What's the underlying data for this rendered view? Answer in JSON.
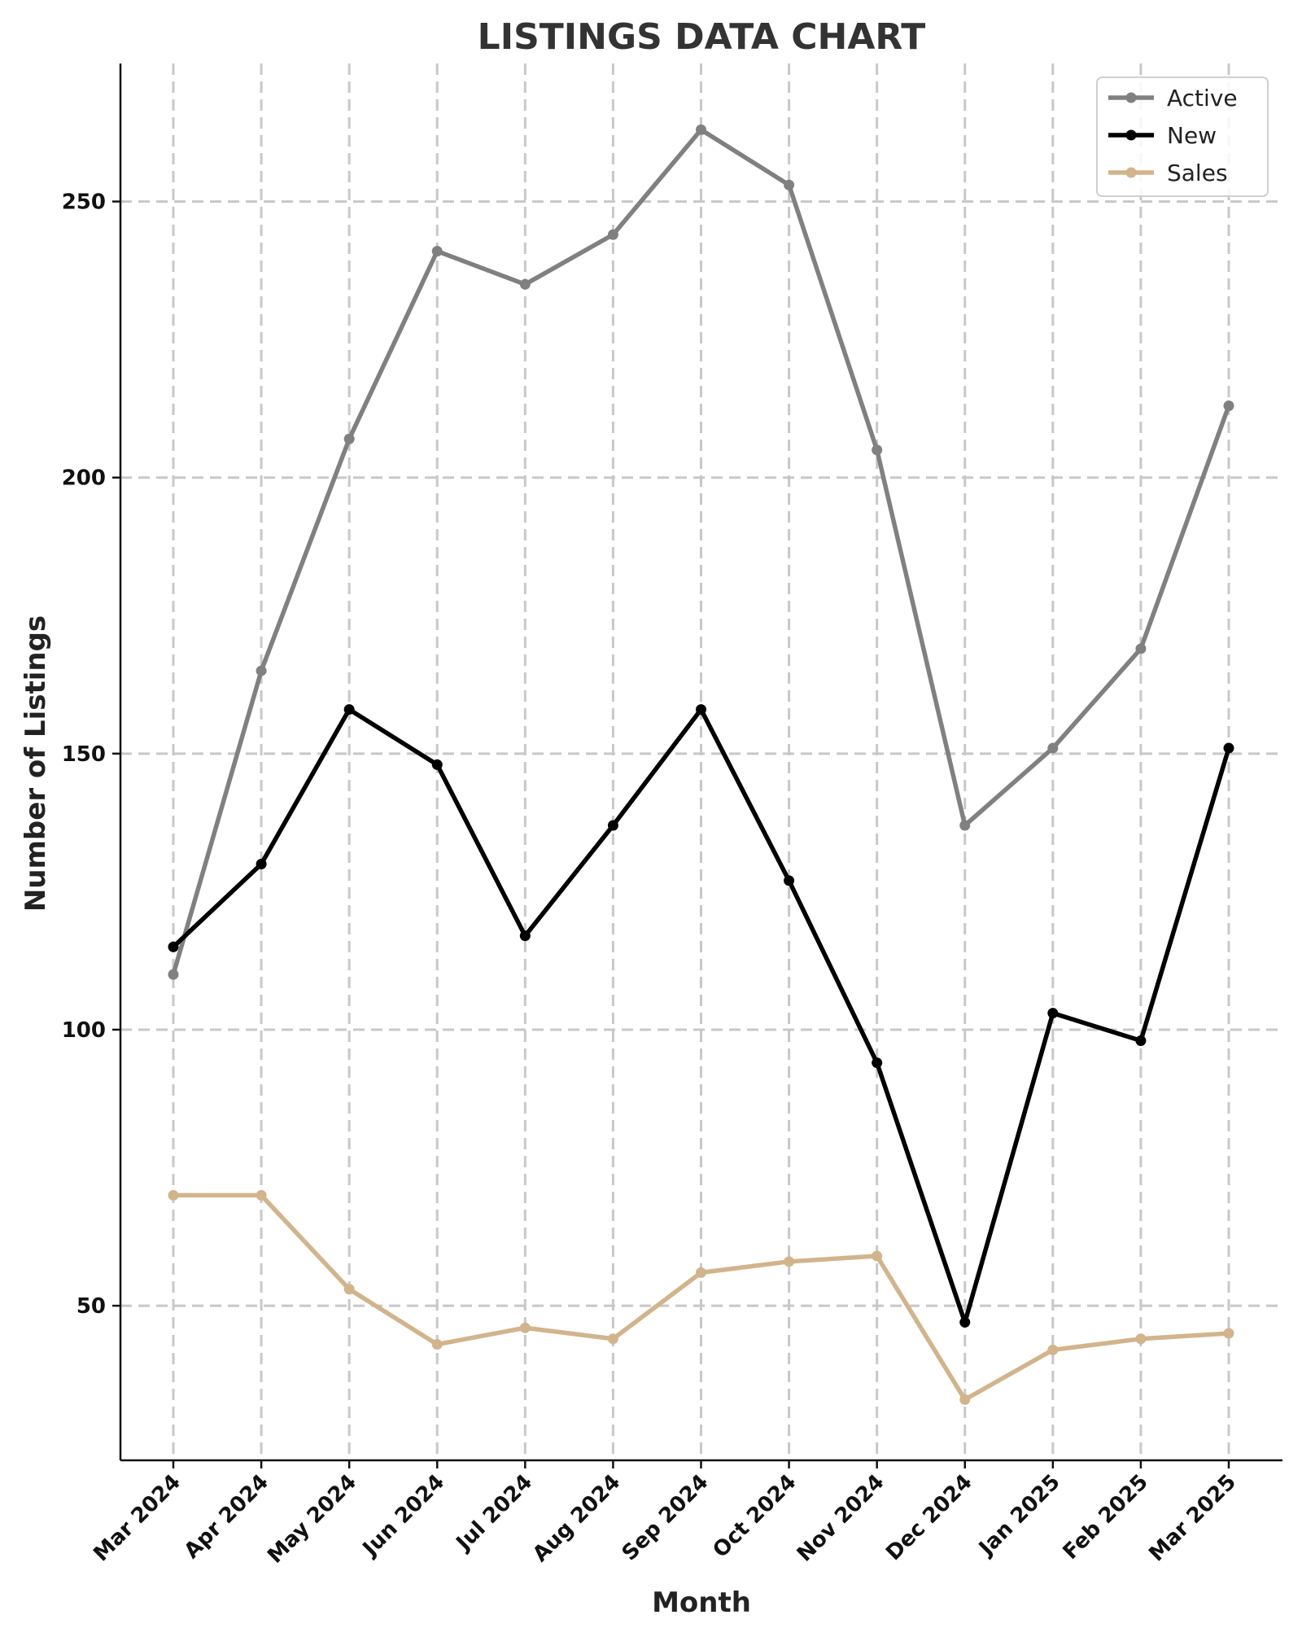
{
  "chart_data": {
    "type": "line",
    "title": "LISTINGS DATA CHART",
    "xlabel": "Month",
    "ylabel": "Number of Listings",
    "categories": [
      "Mar 2024",
      "Apr 2024",
      "May 2024",
      "Jun 2024",
      "Jul 2024",
      "Aug 2024",
      "Sep 2024",
      "Oct 2024",
      "Nov 2024",
      "Dec 2024",
      "Jan 2025",
      "Feb 2025",
      "Mar 2025"
    ],
    "ylim": [
      22,
      275
    ],
    "yticks": [
      50,
      100,
      150,
      200,
      250
    ],
    "grid": true,
    "legend_position": "top-right",
    "series": [
      {
        "name": "Active",
        "color": "#808080",
        "values": [
          110,
          165,
          207,
          241,
          235,
          244,
          263,
          253,
          205,
          137,
          151,
          169,
          213
        ]
      },
      {
        "name": "New",
        "color": "#000000",
        "values": [
          115,
          130,
          158,
          148,
          117,
          137,
          158,
          127,
          94,
          47,
          103,
          98,
          151
        ]
      },
      {
        "name": "Sales",
        "color": "#d2b48c",
        "values": [
          70,
          70,
          53,
          43,
          46,
          44,
          56,
          58,
          59,
          33,
          42,
          44,
          45
        ]
      }
    ]
  }
}
